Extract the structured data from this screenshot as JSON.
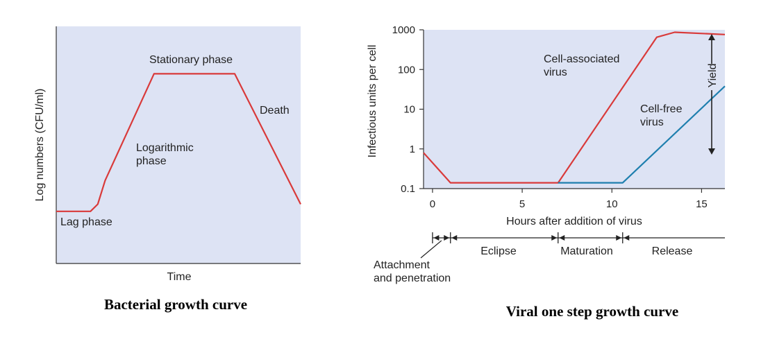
{
  "colors": {
    "plot_bg": "#dde3f4",
    "bacterial_line": "#d93a3a",
    "cell_associated": "#d93a3a",
    "cell_free": "#1e7fae",
    "axis": "#333333"
  },
  "chart_data": [
    {
      "type": "line",
      "title": "Bacterial growth curve",
      "xlabel": "Time",
      "ylabel": "Log numbers (CFU/ml)",
      "xlim": [
        0,
        10
      ],
      "ylim": [
        0,
        10
      ],
      "series": [
        {
          "name": "Bacterial growth",
          "x": [
            0,
            1.4,
            1.7,
            2.0,
            4.0,
            7.3,
            10.0
          ],
          "y": [
            2.2,
            2.2,
            2.5,
            3.5,
            8.0,
            8.0,
            2.5
          ]
        }
      ],
      "annotations": [
        {
          "text": "Lag phase"
        },
        {
          "text": "Logarithmic"
        },
        {
          "text": "phase"
        },
        {
          "text": "Stationary phase"
        },
        {
          "text": "Death"
        }
      ]
    },
    {
      "type": "line",
      "title": "Viral one step growth curve",
      "xlabel": "Hours after addition of virus",
      "ylabel": "Infectious units per cell",
      "xlim": [
        -0.5,
        16.3
      ],
      "ylim": [
        0.1,
        1000
      ],
      "yscale": "log",
      "xticks": [
        0,
        5,
        10,
        15
      ],
      "yticks": [
        "0.1",
        "1",
        "10",
        "100",
        "1000"
      ],
      "series": [
        {
          "name": "Cell-associated virus",
          "x": [
            -0.5,
            1.0,
            7.0,
            12.5,
            13.5,
            16.3
          ],
          "y": [
            0.8,
            0.14,
            0.14,
            650,
            870,
            760
          ]
        },
        {
          "name": "Cell-free virus",
          "x": [
            7.0,
            10.6,
            16.3
          ],
          "y": [
            0.14,
            0.14,
            38
          ]
        }
      ],
      "annotations": [
        {
          "text": "Cell-associated"
        },
        {
          "text": "virus"
        },
        {
          "text": "Cell-free"
        },
        {
          "text": "virus"
        },
        {
          "text": "Yield"
        }
      ],
      "phases": [
        {
          "label": "Attachment",
          "start": 0,
          "end": 1
        },
        {
          "label": "Eclipse",
          "start": 1,
          "end": 7
        },
        {
          "label": "Maturation",
          "start": 7,
          "end": 10.6
        },
        {
          "label": "Release",
          "start": 10.6,
          "end": 16.3
        }
      ],
      "phase_label_extra": "and penetration"
    }
  ]
}
